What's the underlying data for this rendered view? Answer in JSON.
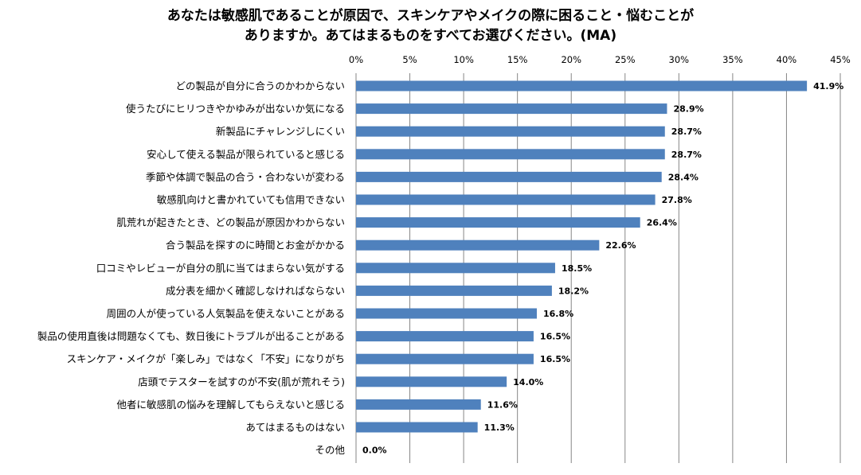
{
  "chart_data": {
    "type": "bar",
    "orientation": "horizontal",
    "title_lines": [
      "あなたは敏感肌であることが原因で、スキンケアやメイクの際に困ること・悩むことが",
      "ありますか。あてはまるものをすべてお選びください。(MA)"
    ],
    "categories": [
      "どの製品が自分に合うのかわからない",
      "使うたびにヒリつきやかゆみが出ないか気になる",
      "新製品にチャレンジしにくい",
      "安心して使える製品が限られていると感じる",
      "季節や体調で製品の合う・合わないが変わる",
      "敏感肌向けと書かれていても信用できない",
      "肌荒れが起きたとき、どの製品が原因かわからない",
      "合う製品を探すのに時間とお金がかかる",
      "口コミやレビューが自分の肌に当てはまらない気がする",
      "成分表を細かく確認しなければならない",
      "周囲の人が使っている人気製品を使えないことがある",
      "製品の使用直後は問題なくても、数日後にトラブルが出ることがある",
      "スキンケア・メイクが「楽しみ」ではなく「不安」になりがち",
      "店頭でテスターを試すのが不安(肌が荒れそう)",
      "他者に敏感肌の悩みを理解してもらえないと感じる",
      "あてはまるものはない",
      "その他"
    ],
    "values": [
      41.9,
      28.9,
      28.7,
      28.7,
      28.4,
      27.8,
      26.4,
      22.6,
      18.5,
      18.2,
      16.8,
      16.5,
      16.5,
      14.0,
      11.6,
      11.3,
      0.0
    ],
    "data_labels": [
      "41.9%",
      "28.9%",
      "28.7%",
      "28.7%",
      "28.4%",
      "27.8%",
      "26.4%",
      "22.6%",
      "18.5%",
      "18.2%",
      "16.8%",
      "16.5%",
      "16.5%",
      "14.0%",
      "11.6%",
      "11.3%",
      "0.0%"
    ],
    "xlim": [
      0,
      45
    ],
    "x_ticks": [
      "0%",
      "5%",
      "10%",
      "15%",
      "20%",
      "25%",
      "30%",
      "35%",
      "40%",
      "45%"
    ],
    "x_axis_position": "top",
    "grid": true,
    "bar_color": "#4F81BD"
  }
}
